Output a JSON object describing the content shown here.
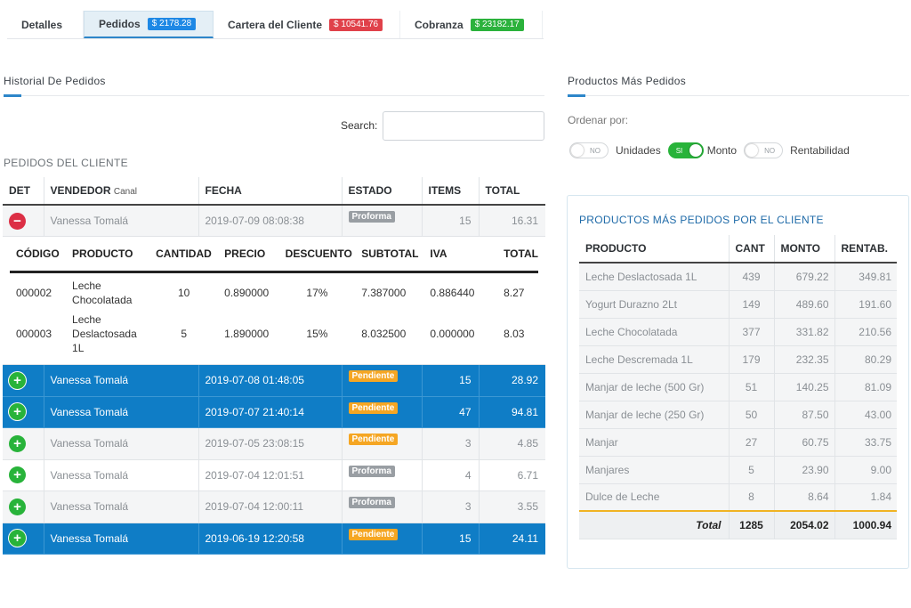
{
  "tabs": [
    {
      "label": "Detalles",
      "badge": null
    },
    {
      "label": "Pedidos",
      "badge": "$ 2178.28",
      "badge_color": "#1e88e5",
      "active": true
    },
    {
      "label": "Cartera del Cliente",
      "badge": "$ 10541.76",
      "badge_color": "#e0414a"
    },
    {
      "label": "Cobranza",
      "badge": "$ 23182.17",
      "badge_color": "#2bb23c"
    }
  ],
  "historial": {
    "title": "Historial De Pedidos",
    "search_label": "Search:",
    "search_value": "",
    "caption": "PEDIDOS DEL CLIENTE",
    "columns": {
      "det": "DET",
      "vendedor": "VENDEDOR",
      "canal": "Canal",
      "fecha": "FECHA",
      "estado": "ESTADO",
      "items": "ITEMS",
      "total": "TOTAL"
    },
    "first_order": {
      "vendedor": "Vanessa Tomalá",
      "fecha": "2019-07-09 08:08:38",
      "estado": "Proforma",
      "items": "15",
      "total": "16.31"
    },
    "detail": {
      "columns": [
        "CÓDIGO",
        "PRODUCTO",
        "CANTIDAD",
        "PRECIO",
        "DESCUENTO",
        "SUBTOTAL",
        "IVA",
        "TOTAL"
      ],
      "rows": [
        {
          "codigo": "000002",
          "producto": "Leche Chocolatada",
          "cantidad": "10",
          "precio": "0.890000",
          "descuento": "17%",
          "subtotal": "7.387000",
          "iva": "0.886440",
          "total": "8.27"
        },
        {
          "codigo": "000003",
          "producto": "Leche Deslactosada 1L",
          "cantidad": "5",
          "precio": "1.890000",
          "descuento": "15%",
          "subtotal": "8.032500",
          "iva": "0.000000",
          "total": "8.03"
        }
      ]
    },
    "orders": [
      {
        "vendedor": "Vanessa Tomalá",
        "fecha": "2019-07-08 01:48:05",
        "estado": "Pendiente",
        "items": "15",
        "total": "28.92",
        "style": "blue"
      },
      {
        "vendedor": "Vanessa Tomalá",
        "fecha": "2019-07-07 21:40:14",
        "estado": "Pendiente",
        "items": "47",
        "total": "94.81",
        "style": "blue"
      },
      {
        "vendedor": "Vanessa Tomalá",
        "fecha": "2019-07-05 23:08:15",
        "estado": "Pendiente",
        "items": "3",
        "total": "4.85",
        "style": "gray"
      },
      {
        "vendedor": "Vanessa Tomalá",
        "fecha": "2019-07-04 12:01:51",
        "estado": "Proforma",
        "items": "4",
        "total": "6.71",
        "style": "white"
      },
      {
        "vendedor": "Vanessa Tomalá",
        "fecha": "2019-07-04 12:00:11",
        "estado": "Proforma",
        "items": "3",
        "total": "3.55",
        "style": "gray"
      },
      {
        "vendedor": "Vanessa Tomalá",
        "fecha": "2019-06-19 12:20:58",
        "estado": "Pendiente",
        "items": "15",
        "total": "24.11",
        "style": "blue"
      }
    ],
    "status_colors": {
      "Pendiente": "#f5a623",
      "Proforma": "#999ea3"
    }
  },
  "productos": {
    "title": "Productos Más Pedidos",
    "ordenar_label": "Ordenar por:",
    "toggles": [
      {
        "label": "Unidades",
        "state": "NO"
      },
      {
        "label": "Monto",
        "state": "SI"
      },
      {
        "label": "Rentabilidad",
        "state": "NO"
      }
    ],
    "card_title": "PRODUCTOS MÁS PEDIDOS POR EL CLIENTE",
    "columns": [
      "PRODUCTO",
      "CANT",
      "MONTO",
      "RENTAB."
    ],
    "rows": [
      {
        "producto": "Leche Deslactosada 1L",
        "cant": "439",
        "monto": "679.22",
        "rentab": "349.81"
      },
      {
        "producto": "Yogurt Durazno 2Lt",
        "cant": "149",
        "monto": "489.60",
        "rentab": "191.60"
      },
      {
        "producto": "Leche Chocolatada",
        "cant": "377",
        "monto": "331.82",
        "rentab": "210.56"
      },
      {
        "producto": "Leche Descremada 1L",
        "cant": "179",
        "monto": "232.35",
        "rentab": "80.29"
      },
      {
        "producto": "Manjar de leche (500 Gr)",
        "cant": "51",
        "monto": "140.25",
        "rentab": "81.09"
      },
      {
        "producto": "Manjar de leche (250 Gr)",
        "cant": "50",
        "monto": "87.50",
        "rentab": "43.00"
      },
      {
        "producto": "Manjar",
        "cant": "27",
        "monto": "60.75",
        "rentab": "33.75"
      },
      {
        "producto": "Manjares",
        "cant": "5",
        "monto": "23.90",
        "rentab": "9.00"
      },
      {
        "producto": "Dulce de Leche",
        "cant": "8",
        "monto": "8.64",
        "rentab": "1.84"
      }
    ],
    "total": {
      "label": "Total",
      "cant": "1285",
      "monto": "2054.02",
      "rentab": "1000.94"
    }
  }
}
